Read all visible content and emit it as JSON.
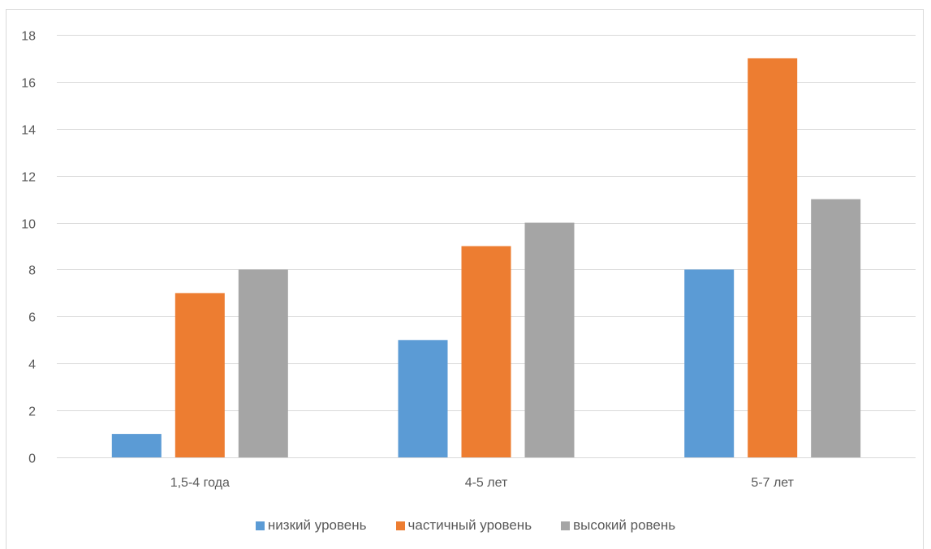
{
  "chart_data": {
    "type": "bar",
    "categories": [
      "1,5-4 года",
      "4-5 лет",
      "5-7 лет"
    ],
    "series": [
      {
        "name": "низкий уровень",
        "values": [
          1,
          5,
          8
        ],
        "color": "#5b9bd5"
      },
      {
        "name": "частичный уровень",
        "values": [
          7,
          9,
          17
        ],
        "color": "#ed7d31"
      },
      {
        "name": "высокий ровень",
        "values": [
          8,
          10,
          11
        ],
        "color": "#a5a5a5"
      }
    ],
    "ylim": [
      0,
      18
    ],
    "yticks": [
      0,
      2,
      4,
      6,
      8,
      10,
      12,
      14,
      16,
      18
    ],
    "grid": true,
    "legend_position": "bottom"
  }
}
